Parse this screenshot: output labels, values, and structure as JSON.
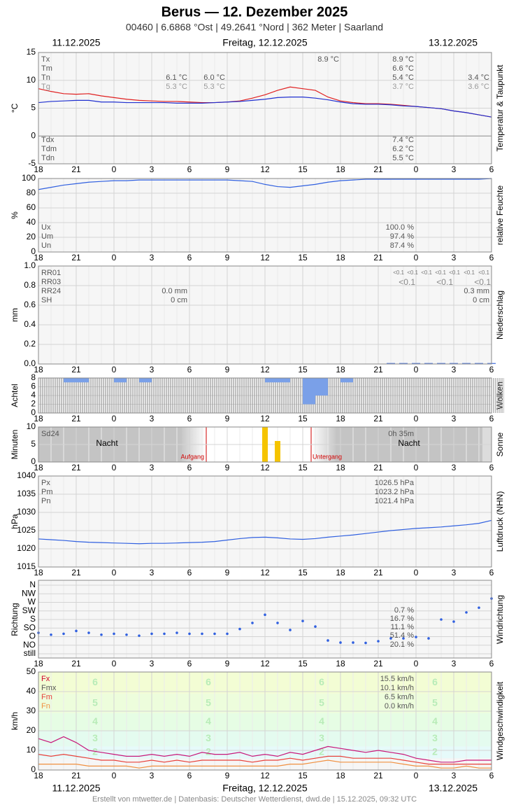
{
  "header": {
    "title": "Berus  —  12. Dezember 2025",
    "subtitle": "00460  |  6.6868 °Ost  |  49.2641 °Nord  |  362 Meter  |  Saarland",
    "date_left": "11.12.2025",
    "date_center": "Freitag, 12.12.2025",
    "date_right": "13.12.2025"
  },
  "footer": "Erstellt von mtwetter.de | Datenbasis: Deutscher Wetterdienst, dwd.de | 15.12.2025, 09:32 UTC",
  "hours": [
    18,
    21,
    0,
    3,
    6,
    9,
    12,
    15,
    18,
    21,
    0,
    3,
    6
  ],
  "chart_data": [
    {
      "type": "line",
      "y_label": "°C",
      "side_label": "Temperatur & Taupunkt",
      "ylim": [
        -5,
        15
      ],
      "yticks": [
        -5,
        0,
        5,
        10,
        15
      ],
      "grid": true,
      "legend": [
        "Tx",
        "Tm",
        "Tn",
        "Tg",
        "Tdx",
        "Tdm",
        "Tdn"
      ],
      "readings": [
        "8.9 °C",
        "8.9 °C",
        "6.6 °C",
        "5.4 °C",
        "3.7 °C",
        "6.1 °C",
        "5.3 °C",
        "6.0 °C",
        "5.3 °C",
        "3.4 °C",
        "3.6 °C",
        "7.4 °C",
        "6.2 °C",
        "5.5 °C"
      ],
      "series": [
        {
          "color": "#e02020",
          "values": [
            8.5,
            8.0,
            7.6,
            7.5,
            7.6,
            7.2,
            6.9,
            6.6,
            6.4,
            6.3,
            6.2,
            6.2,
            6.1,
            6.0,
            6.0,
            6.1,
            6.3,
            6.8,
            7.4,
            8.2,
            8.8,
            8.5,
            8.2,
            7.0,
            6.3,
            6.0,
            5.8,
            5.8,
            5.7,
            5.5,
            5.3,
            5.1,
            4.9,
            4.5,
            4.2,
            3.8,
            3.4
          ]
        },
        {
          "color": "#2030d0",
          "values": [
            6.0,
            6.2,
            6.3,
            6.4,
            6.4,
            6.1,
            6.1,
            6.0,
            6.0,
            6.0,
            6.0,
            5.9,
            5.9,
            5.9,
            6.0,
            6.1,
            6.2,
            6.4,
            6.6,
            6.9,
            7.0,
            7.0,
            6.8,
            6.5,
            6.1,
            5.8,
            5.7,
            5.7,
            5.6,
            5.4,
            5.3,
            5.1,
            4.9,
            4.5,
            4.2,
            3.8,
            3.4
          ]
        }
      ]
    },
    {
      "type": "line",
      "y_label": "%",
      "side_label": "relative Feuchte",
      "ylim": [
        0,
        100
      ],
      "yticks": [
        0,
        20,
        40,
        60,
        80,
        100
      ],
      "grid": true,
      "legend": [
        "Ux",
        "Um",
        "Un"
      ],
      "readings": [
        "100.0 %",
        "97.4 %",
        "87.4 %"
      ],
      "series": [
        {
          "color": "#3060e0",
          "values": [
            85,
            88,
            91,
            93,
            95,
            96,
            97,
            97,
            98,
            98,
            98,
            98,
            98,
            98,
            98,
            98,
            97,
            96,
            92,
            89,
            88,
            90,
            92,
            95,
            97,
            98,
            99,
            99,
            99,
            99,
            99,
            99,
            99,
            99,
            99,
            99,
            100
          ]
        }
      ]
    },
    {
      "type": "bar",
      "y_label": "mm",
      "side_label": "Niederschlag",
      "ylim": [
        0,
        1
      ],
      "yticks": [
        {
          "value": 0,
          "label": "0.0"
        },
        {
          "value": 0.2,
          "label": "0.2"
        },
        {
          "value": 0.4,
          "label": "0.4"
        },
        {
          "value": 0.6,
          "label": "0.6"
        },
        {
          "value": 0.8,
          "label": "0.8"
        },
        {
          "value": 1,
          "label": "1.0"
        }
      ],
      "grid": true,
      "legend": [
        "RR01",
        "RR03",
        "RR24",
        "SH"
      ],
      "readings": [
        "0.0 mm",
        "0 cm",
        "0.3 mm",
        "0 cm",
        "<0.1"
      ],
      "series": [
        {
          "color": "#5a80e0",
          "values": [
            0,
            0,
            0,
            0,
            0,
            0,
            0,
            0,
            0,
            0,
            0,
            0,
            0,
            0,
            0,
            0,
            0,
            0,
            0,
            0,
            0,
            0,
            0,
            0,
            0,
            0,
            0,
            0,
            0.01,
            0.01,
            0.01,
            0.01,
            0.01,
            0.01,
            0.01,
            0.01,
            0.01
          ]
        }
      ]
    },
    {
      "type": "bar",
      "y_label": "Achtel",
      "side_label": "Wolken",
      "ylim": [
        0,
        8
      ],
      "yticks": [
        0,
        2,
        4,
        6,
        8
      ],
      "grid": true,
      "series": [
        {
          "color": "#8a8a8a",
          "values": [
            8,
            8,
            8,
            8,
            8,
            8,
            8,
            8,
            8,
            8,
            8,
            8,
            8,
            8,
            8,
            8,
            8,
            8,
            8,
            8,
            8,
            8,
            8,
            8,
            8,
            8,
            8,
            8,
            8,
            8,
            8,
            8,
            8,
            8,
            8,
            8,
            8
          ]
        },
        {
          "color": "#7aa0e8",
          "from_top": true,
          "values": [
            null,
            null,
            7,
            7,
            null,
            null,
            7,
            null,
            7,
            null,
            null,
            null,
            null,
            null,
            null,
            null,
            null,
            null,
            7,
            7,
            null,
            2,
            4,
            null,
            7,
            null,
            null,
            null,
            null,
            null,
            null,
            null,
            null,
            null,
            null,
            null,
            null
          ]
        }
      ]
    },
    {
      "type": "bar",
      "y_label": "Minuten",
      "side_label": "Sonne",
      "ylim": [
        0,
        10
      ],
      "yticks": [
        0,
        5,
        10
      ],
      "grid": true,
      "legend": [
        "Sd24"
      ],
      "readings": [
        "0h 35m"
      ],
      "notes": [
        "Nacht",
        "Aufgang",
        "Untergang"
      ],
      "series": [
        {
          "color": "#f5c400",
          "values": [
            0,
            0,
            0,
            0,
            0,
            0,
            0,
            0,
            0,
            0,
            0,
            0,
            0,
            0,
            0,
            0,
            0,
            0,
            10,
            6,
            0,
            0,
            0,
            0,
            0,
            0,
            0,
            0,
            0,
            0,
            0,
            0,
            0,
            0,
            0,
            0,
            0
          ]
        }
      ]
    },
    {
      "type": "line",
      "y_label": "hPa",
      "side_label": "Luftdruck (NHN)",
      "ylim": [
        1015,
        1040
      ],
      "yticks": [
        1015,
        1020,
        1025,
        1030,
        1035,
        1040
      ],
      "grid": true,
      "legend": [
        "Px",
        "Pm",
        "Pn"
      ],
      "readings": [
        "1026.5 hPa",
        "1023.2 hPa",
        "1021.4 hPa"
      ],
      "series": [
        {
          "color": "#3060e0",
          "values": [
            1022.7,
            1022.5,
            1022.3,
            1022.0,
            1021.8,
            1021.7,
            1021.6,
            1021.5,
            1021.4,
            1021.5,
            1021.5,
            1021.6,
            1021.7,
            1021.8,
            1022.0,
            1022.4,
            1022.8,
            1023.1,
            1023.2,
            1023.0,
            1022.7,
            1022.6,
            1022.8,
            1023.2,
            1023.5,
            1023.8,
            1024.2,
            1024.6,
            1025.0,
            1025.3,
            1025.6,
            1025.8,
            1026.0,
            1026.3,
            1026.6,
            1027.0,
            1027.8
          ]
        }
      ]
    },
    {
      "type": "scatter",
      "y_label": "Richtung",
      "side_label": "Windrichtung",
      "ylim": [
        0,
        360
      ],
      "grid": true,
      "yticks": [
        {
          "value": 360,
          "label": "N"
        },
        {
          "value": 315,
          "label": "NW"
        },
        {
          "value": 270,
          "label": "W"
        },
        {
          "value": 225,
          "label": "SW"
        },
        {
          "value": 180,
          "label": "S"
        },
        {
          "value": 135,
          "label": "SO"
        },
        {
          "value": 90,
          "label": "O"
        },
        {
          "value": 45,
          "label": "NO"
        },
        {
          "value": 0,
          "label": "still"
        }
      ],
      "readings": [
        "0.7 %",
        "16.7 %",
        "11.1 %",
        "51.4 %",
        "20.1 %"
      ],
      "series": [
        {
          "color": "#3060e0",
          "values": [
            110,
            100,
            105,
            120,
            110,
            100,
            105,
            100,
            95,
            105,
            105,
            110,
            105,
            105,
            105,
            105,
            130,
            162,
            205,
            162,
            125,
            172,
            143,
            70,
            59,
            59,
            57,
            66,
            81,
            81,
            88,
            81,
            180,
            169,
            217,
            242,
            290
          ]
        }
      ]
    },
    {
      "type": "line",
      "y_label": "km/h",
      "side_label": "Windgeschwindigkeit",
      "ylim": [
        0,
        50
      ],
      "yticks": [
        0,
        10,
        20,
        30,
        40,
        50
      ],
      "grid": true,
      "legend": [
        "Fx",
        "Fmx",
        "Fm",
        "Fn"
      ],
      "readings": [
        "15.5 km/h",
        "10.1 km/h",
        "6.5 km/h",
        "0.0 km/h"
      ],
      "bands": [
        {
          "label": "2",
          "from": 6
        },
        {
          "label": "3",
          "from": 12
        },
        {
          "label": "4",
          "from": 20
        },
        {
          "label": "5",
          "from": 29
        },
        {
          "label": "6",
          "from": 39
        }
      ],
      "series": [
        {
          "color": "#c8187a",
          "values": [
            16,
            14,
            17,
            14,
            10,
            9,
            8,
            7,
            7,
            8,
            7,
            8,
            7,
            9,
            8,
            8,
            9,
            7,
            8,
            7,
            9,
            8,
            10,
            12,
            11,
            10,
            9,
            10,
            9,
            8,
            6,
            5,
            4,
            4,
            5,
            5,
            5
          ]
        },
        {
          "color": "#e8403a",
          "values": [
            8,
            7,
            8,
            7,
            6,
            5,
            5,
            4,
            4,
            5,
            4,
            5,
            4,
            5,
            5,
            5,
            5,
            4,
            5,
            5,
            6,
            5,
            6,
            7,
            7,
            6,
            6,
            6,
            6,
            5,
            4,
            3,
            3,
            3,
            3,
            3,
            3
          ]
        },
        {
          "color": "#f09040",
          "values": [
            3,
            3,
            3,
            3,
            2,
            2,
            2,
            2,
            1,
            2,
            2,
            2,
            2,
            2,
            2,
            2,
            2,
            2,
            2,
            2,
            3,
            3,
            4,
            5,
            4,
            4,
            4,
            4,
            4,
            3,
            2,
            2,
            1,
            1,
            2,
            1,
            1
          ]
        }
      ]
    }
  ]
}
